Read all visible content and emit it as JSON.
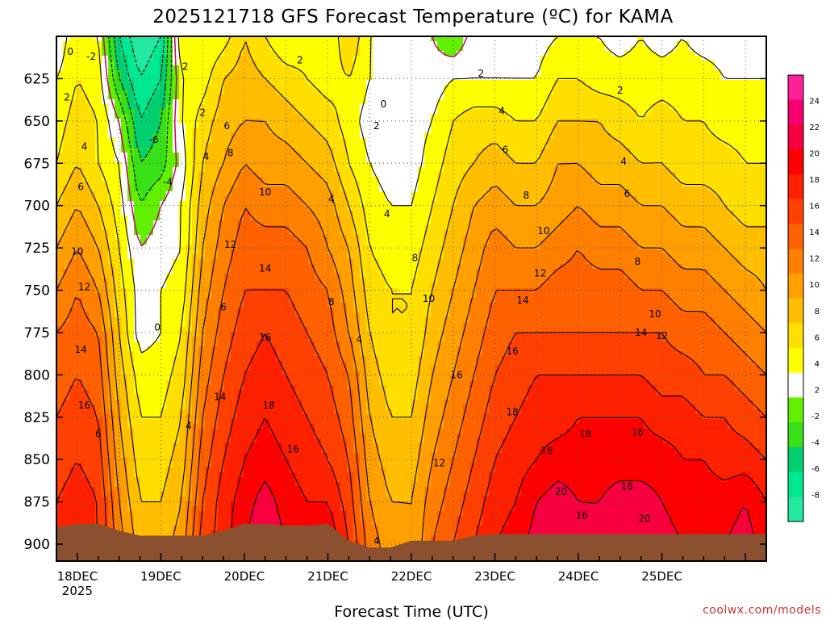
{
  "chart_data": {
    "type": "heatmap",
    "title": "2025121718 GFS Forecast Temperature (ºC) for KAMA",
    "xlabel": "Forecast Time (UTC)",
    "ylabel": "Pressure (hPa)",
    "credit": "coolwx.com/models",
    "y_axis": {
      "min": 600,
      "max": 910,
      "inverted": true,
      "ticks": [
        625,
        650,
        675,
        700,
        725,
        750,
        775,
        800,
        825,
        850,
        875,
        900
      ]
    },
    "x_axis": {
      "start_hour": 0,
      "end_hour": 204,
      "ticks": [
        {
          "hour": 6,
          "label": "18DEC",
          "sub": "2025"
        },
        {
          "hour": 30,
          "label": "19DEC",
          "sub": ""
        },
        {
          "hour": 54,
          "label": "20DEC",
          "sub": ""
        },
        {
          "hour": 78,
          "label": "21DEC",
          "sub": ""
        },
        {
          "hour": 102,
          "label": "22DEC",
          "sub": ""
        },
        {
          "hour": 126,
          "label": "23DEC",
          "sub": ""
        },
        {
          "hour": 150,
          "label": "24DEC",
          "sub": ""
        },
        {
          "hour": 174,
          "label": "25DEC",
          "sub": ""
        }
      ]
    },
    "colorbar": {
      "levels": [
        -10,
        -8,
        -6,
        -4,
        -2,
        0,
        2,
        4,
        6,
        8,
        10,
        12,
        14,
        16,
        18,
        20,
        22,
        24,
        26
      ],
      "labels": [
        "24",
        "22",
        "20",
        "18",
        "16",
        "14",
        "12",
        "10",
        "8",
        "6",
        "4",
        "2",
        "-2",
        "-4",
        "-6",
        "-8"
      ],
      "colors": [
        "#22e8a0",
        "#00e890",
        "#00d070",
        "#38e018",
        "#60f000",
        "#ffffff",
        "#ffff00",
        "#ffdf00",
        "#ffbf00",
        "#ffa000",
        "#ff8000",
        "#ff6000",
        "#ff4000",
        "#ff2000",
        "#ff0000",
        "#f80040",
        "#f80070",
        "#ff2098"
      ]
    },
    "surface": {
      "color": "#8b5030",
      "hours": [
        0,
        6,
        12,
        18,
        24,
        30,
        36,
        42,
        48,
        54,
        60,
        66,
        72,
        78,
        84,
        90,
        96,
        102,
        108,
        114,
        120,
        126,
        132,
        138,
        144,
        150,
        156,
        162,
        168,
        174,
        180,
        186,
        192,
        198,
        204
      ],
      "pressure": [
        890,
        888,
        888,
        892,
        895,
        895,
        895,
        895,
        892,
        888,
        888,
        889,
        889,
        888,
        898,
        902,
        902,
        898,
        898,
        898,
        895,
        894,
        894,
        894,
        894,
        894,
        894,
        894,
        894,
        894,
        894,
        894,
        894,
        894,
        894
      ]
    },
    "grid": {
      "hours": [
        0,
        6,
        12,
        18,
        24,
        30,
        36,
        42,
        48,
        54,
        60,
        66,
        72,
        78,
        84,
        90,
        96,
        102,
        108,
        114,
        120,
        126,
        132,
        138,
        144,
        150,
        156,
        162,
        168,
        174,
        180,
        186,
        192,
        198,
        204
      ],
      "pressure": [
        600,
        625,
        650,
        675,
        700,
        725,
        750,
        775,
        800,
        825,
        850,
        875,
        900
      ],
      "temperature": [
        [
          0,
          4,
          2,
          -6,
          -10,
          -8,
          4,
          2,
          3,
          6,
          4,
          2,
          3,
          2,
          6,
          2,
          1,
          2,
          0,
          -2,
          1,
          1,
          1,
          1,
          2,
          2,
          2,
          1,
          2,
          1,
          2,
          1,
          1,
          1,
          1
        ],
        [
          2,
          4,
          3,
          -4,
          -8,
          -6,
          2,
          3,
          6,
          7,
          6,
          5,
          4,
          3,
          4,
          2,
          1,
          1,
          1,
          2,
          2,
          2,
          2,
          2,
          4,
          4,
          3,
          3,
          3,
          3,
          3,
          3,
          2,
          2,
          2
        ],
        [
          3,
          5,
          4,
          0,
          -6,
          -4,
          2,
          5,
          7,
          8,
          8,
          7,
          6,
          5,
          3,
          1,
          1,
          1,
          2,
          4,
          5,
          5,
          4,
          4,
          6,
          6,
          6,
          5,
          4,
          5,
          4,
          4,
          3,
          3,
          3
        ],
        [
          4,
          6,
          4,
          2,
          -4,
          -3,
          1,
          6,
          8,
          10,
          9,
          9,
          8,
          7,
          4,
          2,
          1,
          1,
          3,
          5,
          6,
          7,
          6,
          6,
          8,
          8,
          7,
          7,
          6,
          6,
          5,
          5,
          5,
          4,
          4
        ],
        [
          6,
          8,
          6,
          3,
          -2,
          0,
          2,
          7,
          10,
          12,
          11,
          11,
          10,
          9,
          6,
          3,
          2,
          2,
          4,
          6,
          8,
          9,
          8,
          8,
          9,
          10,
          9,
          9,
          8,
          8,
          7,
          7,
          6,
          5,
          5
        ],
        [
          8,
          10,
          8,
          4,
          0,
          1,
          2,
          8,
          11,
          13,
          13,
          13,
          12,
          10,
          8,
          4,
          3,
          3,
          5,
          7,
          9,
          11,
          10,
          10,
          11,
          12,
          11,
          11,
          10,
          10,
          9,
          9,
          8,
          7,
          7
        ],
        [
          10,
          12,
          10,
          5,
          1,
          2,
          3,
          9,
          12,
          14,
          14,
          14,
          13,
          12,
          9,
          5,
          4,
          4,
          6,
          8,
          10,
          12,
          12,
          12,
          13,
          13,
          13,
          13,
          12,
          12,
          11,
          11,
          10,
          9,
          8
        ],
        [
          12,
          13,
          12,
          6,
          1,
          2,
          4,
          10,
          13,
          15,
          16,
          15,
          14,
          13,
          10,
          6,
          4,
          4,
          7,
          9,
          11,
          13,
          14,
          14,
          14,
          14,
          14,
          14,
          14,
          14,
          13,
          13,
          12,
          11,
          10
        ],
        [
          13,
          14,
          13,
          7,
          3,
          3,
          5,
          11,
          14,
          16,
          17,
          16,
          15,
          14,
          12,
          7,
          5,
          5,
          8,
          10,
          12,
          14,
          15,
          16,
          16,
          16,
          16,
          16,
          16,
          15,
          15,
          14,
          14,
          13,
          12
        ],
        [
          14,
          15,
          14,
          8,
          4,
          4,
          6,
          12,
          15,
          17,
          18,
          17,
          16,
          15,
          13,
          8,
          6,
          6,
          9,
          11,
          13,
          15,
          16,
          17,
          17,
          18,
          18,
          18,
          18,
          17,
          17,
          16,
          16,
          15,
          14
        ],
        [
          15,
          16,
          15,
          9,
          5,
          5,
          7,
          13,
          16,
          18,
          19,
          18,
          17,
          16,
          14,
          9,
          7,
          7,
          10,
          12,
          14,
          16,
          17,
          18,
          19,
          19,
          19,
          19,
          19,
          19,
          18,
          18,
          17,
          17,
          16
        ],
        [
          16,
          17,
          16,
          10,
          6,
          6,
          8,
          14,
          17,
          19,
          21,
          19,
          18,
          18,
          15,
          10,
          8,
          8,
          11,
          13,
          15,
          17,
          18,
          20,
          21,
          20,
          20,
          21,
          21,
          20,
          19,
          19,
          19,
          20,
          18
        ],
        [
          17,
          18,
          16,
          11,
          7,
          7,
          9,
          15,
          17,
          20,
          22,
          20,
          19,
          20,
          16,
          11,
          9,
          8,
          12,
          14,
          16,
          18,
          19,
          21,
          22,
          21,
          20,
          22,
          22,
          21,
          20,
          20,
          20,
          21,
          19
        ]
      ]
    },
    "contour_labels": [
      {
        "hour": 4,
        "pressure": 609,
        "text": "0"
      },
      {
        "hour": 10,
        "pressure": 612,
        "text": "-2"
      },
      {
        "hour": 3,
        "pressure": 636,
        "text": "2"
      },
      {
        "hour": 37,
        "pressure": 618,
        "text": "2"
      },
      {
        "hour": 28,
        "pressure": 661,
        "text": "-6"
      },
      {
        "hour": 32,
        "pressure": 686,
        "text": "-4"
      },
      {
        "hour": 8,
        "pressure": 665,
        "text": "4"
      },
      {
        "hour": 7,
        "pressure": 689,
        "text": "6"
      },
      {
        "hour": 6,
        "pressure": 727,
        "text": "10"
      },
      {
        "hour": 8,
        "pressure": 748,
        "text": "12"
      },
      {
        "hour": 7,
        "pressure": 785,
        "text": "14"
      },
      {
        "hour": 8,
        "pressure": 818,
        "text": "16"
      },
      {
        "hour": 12,
        "pressure": 835,
        "text": "6"
      },
      {
        "hour": 29,
        "pressure": 772,
        "text": "0"
      },
      {
        "hour": 38,
        "pressure": 830,
        "text": "4"
      },
      {
        "hour": 42,
        "pressure": 645,
        "text": "2"
      },
      {
        "hour": 43,
        "pressure": 671,
        "text": "4"
      },
      {
        "hour": 49,
        "pressure": 653,
        "text": "6"
      },
      {
        "hour": 50,
        "pressure": 669,
        "text": "8"
      },
      {
        "hour": 60,
        "pressure": 692,
        "text": "10"
      },
      {
        "hour": 50,
        "pressure": 723,
        "text": "12"
      },
      {
        "hour": 60,
        "pressure": 737,
        "text": "14"
      },
      {
        "hour": 48,
        "pressure": 760,
        "text": "6"
      },
      {
        "hour": 60,
        "pressure": 778,
        "text": "16"
      },
      {
        "hour": 47,
        "pressure": 813,
        "text": "14"
      },
      {
        "hour": 61,
        "pressure": 818,
        "text": "18"
      },
      {
        "hour": 68,
        "pressure": 844,
        "text": "16"
      },
      {
        "hour": 70,
        "pressure": 614,
        "text": "2"
      },
      {
        "hour": 79,
        "pressure": 696,
        "text": "4"
      },
      {
        "hour": 79,
        "pressure": 757,
        "text": "8"
      },
      {
        "hour": 94,
        "pressure": 640,
        "text": "0"
      },
      {
        "hour": 92,
        "pressure": 653,
        "text": "2"
      },
      {
        "hour": 95,
        "pressure": 705,
        "text": "4"
      },
      {
        "hour": 87,
        "pressure": 779,
        "text": "4"
      },
      {
        "hour": 92,
        "pressure": 898,
        "text": "4"
      },
      {
        "hour": 103,
        "pressure": 731,
        "text": "8"
      },
      {
        "hour": 107,
        "pressure": 755,
        "text": "10"
      },
      {
        "hour": 115,
        "pressure": 800,
        "text": "16"
      },
      {
        "hour": 110,
        "pressure": 852,
        "text": "12"
      },
      {
        "hour": 122,
        "pressure": 622,
        "text": "2"
      },
      {
        "hour": 128,
        "pressure": 644,
        "text": "4"
      },
      {
        "hour": 129,
        "pressure": 667,
        "text": "6"
      },
      {
        "hour": 135,
        "pressure": 694,
        "text": "8"
      },
      {
        "hour": 140,
        "pressure": 715,
        "text": "10"
      },
      {
        "hour": 139,
        "pressure": 740,
        "text": "12"
      },
      {
        "hour": 134,
        "pressure": 756,
        "text": "14"
      },
      {
        "hour": 131,
        "pressure": 786,
        "text": "16"
      },
      {
        "hour": 131,
        "pressure": 822,
        "text": "18"
      },
      {
        "hour": 141,
        "pressure": 845,
        "text": "18"
      },
      {
        "hour": 152,
        "pressure": 835,
        "text": "18"
      },
      {
        "hour": 145,
        "pressure": 869,
        "text": "20"
      },
      {
        "hour": 151,
        "pressure": 883,
        "text": "16"
      },
      {
        "hour": 164,
        "pressure": 866,
        "text": "16"
      },
      {
        "hour": 167,
        "pressure": 834,
        "text": "16"
      },
      {
        "hour": 168,
        "pressure": 775,
        "text": "14"
      },
      {
        "hour": 172,
        "pressure": 764,
        "text": "10"
      },
      {
        "hour": 174,
        "pressure": 777,
        "text": "12"
      },
      {
        "hour": 167,
        "pressure": 733,
        "text": "8"
      },
      {
        "hour": 164,
        "pressure": 693,
        "text": "6"
      },
      {
        "hour": 163,
        "pressure": 674,
        "text": "4"
      },
      {
        "hour": 162,
        "pressure": 632,
        "text": "2"
      },
      {
        "hour": 169,
        "pressure": 885,
        "text": "20"
      }
    ]
  }
}
